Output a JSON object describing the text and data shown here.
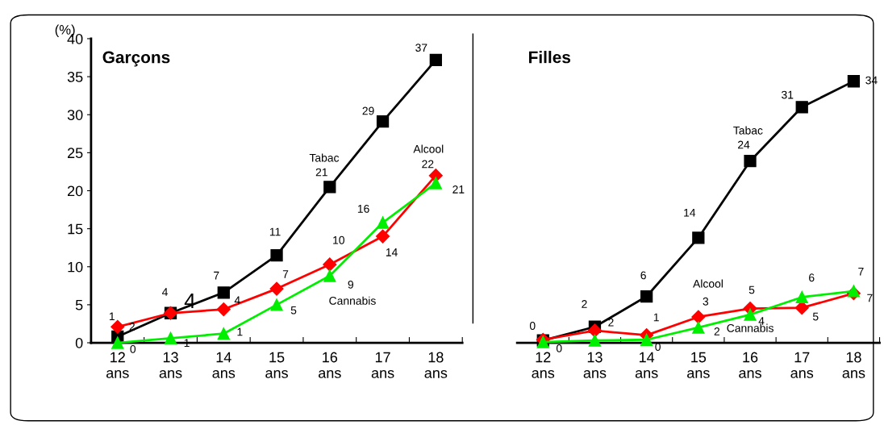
{
  "chart_data": [
    {
      "type": "line",
      "title": "Garçons",
      "ylabel": "(%)",
      "categories": [
        "12\nans",
        "13\nans",
        "14\nans",
        "15\nans",
        "16\nans",
        "17\nans",
        "18\nans"
      ],
      "ylim": [
        0,
        40
      ],
      "yticks": [
        0,
        5,
        10,
        15,
        20,
        25,
        30,
        35,
        40
      ],
      "grid": false,
      "series": [
        {
          "color": "#000000",
          "marker": "square",
          "values": [
            0.8,
            3.9,
            6.6,
            11.5,
            20.5,
            29.1,
            37.2
          ],
          "value_labels": [
            "1",
            "4",
            "7",
            "11",
            "21",
            "29",
            "37"
          ]
        },
        {
          "color": "#ff0000",
          "marker": "diamond",
          "values": [
            2.1,
            3.9,
            4.4,
            7.1,
            10.3,
            14.0,
            22.0
          ],
          "value_labels": [
            "2",
            "4",
            "4",
            "7",
            "10",
            "14",
            "22"
          ]
        },
        {
          "color": "#00ee00",
          "marker": "triangle",
          "values": [
            0.0,
            0.6,
            1.2,
            5.0,
            8.8,
            15.8,
            21.0
          ],
          "value_labels": [
            "0",
            "1",
            "1",
            "5",
            "9",
            "16",
            "21"
          ]
        }
      ],
      "annotations": [
        "Tabac",
        "Alcool",
        "Cannabis"
      ]
    },
    {
      "type": "line",
      "title": "Filles",
      "categories": [
        "12\nans",
        "13\nans",
        "14\nans",
        "15\nans",
        "16\nans",
        "17\nans",
        "18\nans"
      ],
      "ylim": [
        0,
        40
      ],
      "yticks": [
        0,
        5,
        10,
        15,
        20,
        25,
        30,
        35,
        40
      ],
      "tick_labels": "x",
      "grid": false,
      "series": [
        {
          "color": "#000000",
          "marker": "square",
          "values": [
            0.3,
            2.1,
            6.1,
            13.8,
            23.9,
            31.0,
            34.4
          ],
          "value_labels": [
            "0",
            "2",
            "6",
            "14",
            "24",
            "31",
            "34"
          ]
        },
        {
          "color": "#ff0000",
          "marker": "diamond",
          "values": [
            0.4,
            1.6,
            1.0,
            3.4,
            4.5,
            4.6,
            6.5
          ],
          "value_labels": [
            null,
            "2",
            "1",
            "3",
            "5",
            "5",
            "7"
          ]
        },
        {
          "color": "#00ee00",
          "marker": "triangle",
          "values": [
            0.1,
            0.3,
            0.4,
            2.0,
            3.7,
            6.0,
            6.8
          ],
          "value_labels": [
            "0",
            null,
            "0",
            "2",
            "4",
            "6",
            "7"
          ]
        }
      ],
      "annotations": [
        "Tabac",
        "Alcool",
        "Cannabis"
      ]
    }
  ]
}
